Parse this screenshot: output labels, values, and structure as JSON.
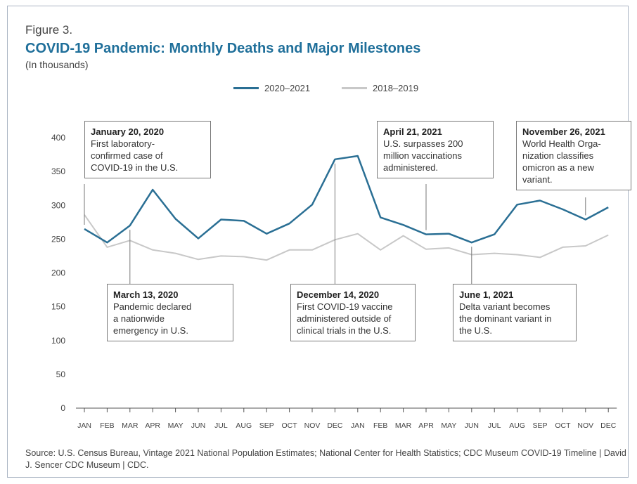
{
  "figure_label": "Figure 3.",
  "chart_data": {
    "type": "line",
    "title": "COVID-19 Pandemic: Monthly Deaths and Major Milestones",
    "subtitle": "(In thousands)",
    "categories": [
      "JAN",
      "FEB",
      "MAR",
      "APR",
      "MAY",
      "JUN",
      "JUL",
      "AUG",
      "SEP",
      "OCT",
      "NOV",
      "DEC",
      "JAN",
      "FEB",
      "MAR",
      "APR",
      "MAY",
      "JUN",
      "JUL",
      "AUG",
      "SEP",
      "OCT",
      "NOV",
      "DEC"
    ],
    "yticks": [
      0,
      50,
      100,
      150,
      200,
      250,
      300,
      350,
      400
    ],
    "ylim": [
      0,
      400
    ],
    "grid": false,
    "legend_position": "top-center",
    "series": [
      {
        "name": "2020–2021",
        "color": "#2a6f94",
        "values": [
          265,
          245,
          270,
          323,
          280,
          251,
          279,
          277,
          258,
          273,
          301,
          368,
          373,
          282,
          271,
          257,
          258,
          245,
          257,
          301,
          307,
          294,
          279,
          297
        ]
      },
      {
        "name": "2018–2019",
        "color": "#c8c8c8",
        "values": [
          286,
          238,
          248,
          234,
          229,
          220,
          225,
          224,
          219,
          234,
          234,
          249,
          258,
          234,
          255,
          235,
          237,
          227,
          229,
          227,
          223,
          238,
          240,
          256
        ]
      }
    ],
    "annotations": [
      {
        "date": "January 20, 2020",
        "text": "First laboratory-\nconfirmed case of\nCOVID-19 in the U.S.",
        "index": 0
      },
      {
        "date": "March 13, 2020",
        "text": "Pandemic declared\na nationwide\nemergency in U.S.",
        "index": 2
      },
      {
        "date": "December 14, 2020",
        "text": "First COVID-19 vaccine\nadministered outside of\nclinical trials in the U.S.",
        "index": 11
      },
      {
        "date": "April 21, 2021",
        "text": "U.S. surpasses 200\nmillion vaccinations\nadministered.",
        "index": 15
      },
      {
        "date": "June 1, 2021",
        "text": "Delta variant becomes\nthe dominant variant in\nthe U.S.",
        "index": 17
      },
      {
        "date": "November 26, 2021",
        "text": "World Health Orga-\nnization classifies\nomicron as a new\nvariant.",
        "index": 22
      }
    ]
  },
  "source": "Source: U.S. Census Bureau, Vintage 2021 National Population Estimates; National Center for Health Statistics; CDC Museum COVID-19 Timeline | David J. Sencer CDC Museum | CDC."
}
